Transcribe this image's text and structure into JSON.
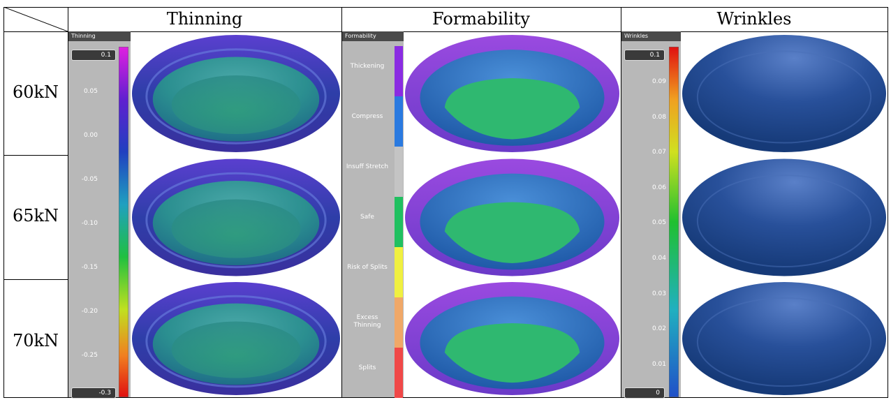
{
  "table": {
    "columns": [
      "Thinning",
      "Formability",
      "Wrinkles"
    ],
    "rows": [
      "60kN",
      "65kN",
      "70kN"
    ]
  },
  "legends": {
    "thinning": {
      "title": "Thinning",
      "max": "0.1",
      "min": "-0.3",
      "ticks": [
        "0.05",
        "0.00",
        "-0.05",
        "-0.10",
        "-0.15",
        "-0.20",
        "-0.25"
      ]
    },
    "formability": {
      "title": "Formability",
      "labels": [
        "Thickening",
        "Compress",
        "Insuff Stretch",
        "Safe",
        "Risk of Splits",
        "Excess Thinning",
        "Splits"
      ]
    },
    "wrinkles": {
      "title": "Wrinkles",
      "max": "0.1",
      "min": "0",
      "ticks": [
        "0.09",
        "0.08",
        "0.07",
        "0.06",
        "0.05",
        "0.04",
        "0.03",
        "0.02",
        "0.01"
      ]
    }
  }
}
